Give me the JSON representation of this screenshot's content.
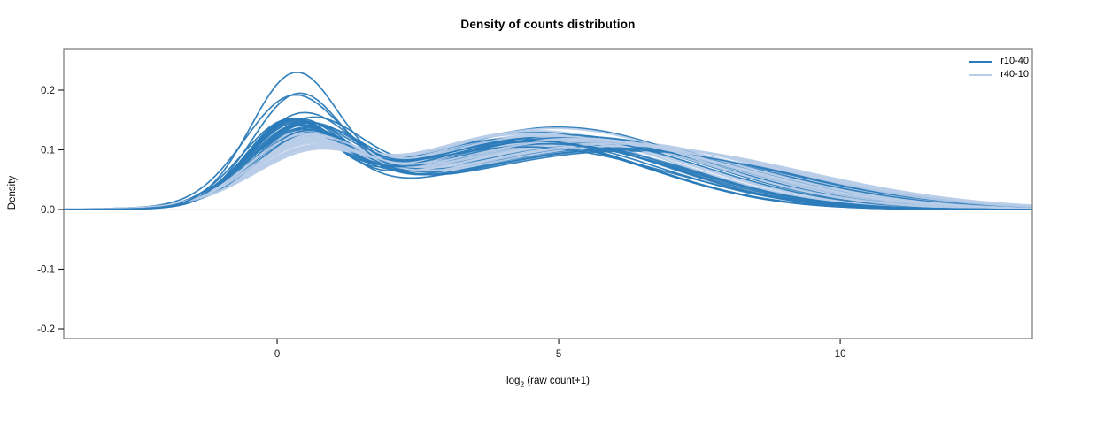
{
  "title": "Density of counts distribution",
  "chart_data": {
    "type": "line",
    "title": "Density of counts distribution",
    "xlabel": "log2 (raw count+1)",
    "xlabel_parts": {
      "base": "log",
      "sub": "2",
      "rest": " (raw count+1)"
    },
    "ylabel": "Density",
    "xlim": [
      -3.79,
      13.41
    ],
    "ylim": [
      -0.2163,
      0.2696
    ],
    "xticks": [
      0,
      5,
      10
    ],
    "yticks": [
      -0.2,
      -0.1,
      0.0,
      0.1,
      0.2
    ],
    "grid": false,
    "border_color": "#7f7f7f",
    "tick_color": "#1a1a1a",
    "zero_line_color": "#ececec",
    "legend": {
      "position": "top-right",
      "entries": [
        {
          "label": "r10-40",
          "color": "#2b7bb9"
        },
        {
          "label": "r40-10",
          "color": "#b9cde8"
        }
      ]
    },
    "curve_model": "y(x) = A1*exp(-(x-m1)^2/(2*s1^2)) + A2*exp(-(x-m2)^2/(2*s2^2)); params per curve: [m1,s1,A1,m2,s2,A2]",
    "series": [
      {
        "name": "r10-40",
        "color": "#2b7bb9",
        "opacity": 0.95,
        "width": 1.7,
        "curves": [
          [
            0.4,
            0.9,
            0.14,
            5.2,
            2.6,
            0.12
          ],
          [
            0.2,
            0.75,
            0.135,
            4.6,
            2.2,
            0.13
          ],
          [
            0.55,
            0.95,
            0.13,
            5.5,
            2.8,
            0.115
          ],
          [
            0.3,
            0.82,
            0.128,
            5.0,
            2.5,
            0.138
          ],
          [
            0.45,
            0.88,
            0.132,
            5.8,
            2.7,
            0.108
          ],
          [
            0.15,
            0.8,
            0.126,
            4.2,
            2.3,
            0.118
          ],
          [
            0.5,
            0.92,
            0.124,
            5.4,
            2.6,
            0.122
          ],
          [
            0.35,
            0.85,
            0.12,
            6.0,
            2.9,
            0.1
          ],
          [
            0.25,
            0.78,
            0.135,
            4.9,
            2.4,
            0.112
          ],
          [
            0.6,
            0.95,
            0.118,
            5.6,
            2.7,
            0.118
          ],
          [
            0.3,
            0.85,
            0.126,
            5.1,
            2.5,
            0.125
          ],
          [
            0.42,
            0.88,
            0.122,
            4.7,
            2.35,
            0.12
          ],
          [
            0.18,
            0.76,
            0.13,
            4.3,
            2.25,
            0.115
          ],
          [
            0.52,
            0.93,
            0.116,
            5.9,
            2.85,
            0.105
          ],
          [
            0.33,
            0.83,
            0.124,
            5.3,
            2.55,
            0.118
          ],
          [
            0.27,
            0.8,
            0.128,
            4.55,
            2.3,
            0.122
          ],
          [
            0.47,
            0.9,
            0.118,
            5.7,
            2.75,
            0.11
          ],
          [
            0.22,
            0.77,
            0.132,
            4.35,
            2.2,
            0.117
          ],
          [
            0.57,
            0.96,
            0.114,
            6.2,
            2.95,
            0.098
          ],
          [
            0.37,
            0.86,
            0.121,
            5.15,
            2.5,
            0.121
          ],
          [
            0.29,
            0.81,
            0.127,
            4.75,
            2.4,
            0.116
          ],
          [
            0.44,
            0.89,
            0.119,
            5.45,
            2.65,
            0.113
          ],
          [
            0.24,
            0.79,
            0.125,
            4.25,
            2.28,
            0.119
          ],
          [
            0.49,
            0.91,
            0.117,
            5.95,
            2.8,
            0.103
          ],
          [
            0.31,
            0.84,
            0.123,
            5.05,
            2.48,
            0.12
          ],
          [
            0.26,
            0.8,
            0.129,
            4.65,
            2.38,
            0.114
          ],
          [
            0.54,
            0.94,
            0.112,
            6.1,
            2.9,
            0.1
          ],
          [
            0.25,
            0.85,
            0.165,
            4.4,
            2.5,
            0.105
          ],
          [
            0.35,
            0.8,
            0.175,
            4.8,
            2.4,
            0.11
          ],
          [
            0.3,
            0.78,
            0.208,
            4.5,
            2.3,
            0.115
          ]
        ]
      },
      {
        "name": "r40-10",
        "color": "#b9cde8",
        "opacity": 0.92,
        "width": 2.0,
        "curves": [
          [
            0.45,
            0.95,
            0.095,
            5.0,
            2.6,
            0.125
          ],
          [
            0.55,
            1.0,
            0.09,
            5.5,
            2.8,
            0.12
          ],
          [
            0.35,
            0.9,
            0.1,
            4.6,
            2.4,
            0.132
          ],
          [
            0.6,
            1.05,
            0.085,
            5.8,
            2.9,
            0.115
          ],
          [
            0.4,
            0.92,
            0.098,
            5.2,
            2.65,
            0.122
          ],
          [
            0.5,
            0.98,
            0.092,
            6.0,
            3.0,
            0.11
          ],
          [
            0.3,
            0.88,
            0.102,
            4.4,
            2.35,
            0.126
          ],
          [
            0.65,
            1.08,
            0.082,
            6.3,
            3.05,
            0.105
          ],
          [
            0.42,
            0.93,
            0.096,
            5.35,
            2.7,
            0.119
          ],
          [
            0.52,
            0.99,
            0.09,
            5.65,
            2.85,
            0.113
          ],
          [
            0.38,
            0.91,
            0.099,
            4.85,
            2.5,
            0.124
          ],
          [
            0.58,
            1.03,
            0.086,
            6.15,
            2.98,
            0.108
          ],
          [
            0.33,
            0.89,
            0.101,
            4.5,
            2.4,
            0.128
          ],
          [
            0.62,
            1.06,
            0.084,
            5.9,
            2.92,
            0.112
          ],
          [
            0.46,
            0.95,
            0.094,
            5.45,
            2.72,
            0.118
          ],
          [
            0.36,
            0.9,
            0.1,
            4.7,
            2.45,
            0.125
          ],
          [
            0.56,
            1.01,
            0.088,
            6.05,
            2.95,
            0.109
          ],
          [
            0.44,
            0.94,
            0.095,
            5.25,
            2.68,
            0.12
          ],
          [
            0.48,
            0.96,
            0.093,
            5.55,
            2.78,
            0.116
          ],
          [
            0.34,
            0.89,
            0.103,
            4.55,
            2.42,
            0.123
          ],
          [
            0.64,
            1.07,
            0.083,
            6.25,
            3.02,
            0.106
          ],
          [
            0.41,
            0.92,
            0.097,
            5.1,
            2.6,
            0.121
          ],
          [
            0.53,
            1.0,
            0.089,
            5.75,
            2.88,
            0.111
          ],
          [
            0.37,
            0.91,
            0.1,
            4.8,
            2.5,
            0.124
          ],
          [
            0.59,
            1.04,
            0.085,
            6.2,
            3.0,
            0.107
          ],
          [
            0.43,
            0.93,
            0.096,
            5.3,
            2.7,
            0.119
          ],
          [
            0.51,
            0.98,
            0.091,
            5.6,
            2.8,
            0.114
          ],
          [
            0.39,
            0.92,
            0.098,
            4.95,
            2.55,
            0.136
          ],
          [
            0.61,
            1.05,
            0.084,
            6.0,
            2.94,
            0.11
          ],
          [
            0.47,
            0.96,
            0.094,
            5.4,
            2.74,
            0.117
          ]
        ]
      }
    ]
  }
}
